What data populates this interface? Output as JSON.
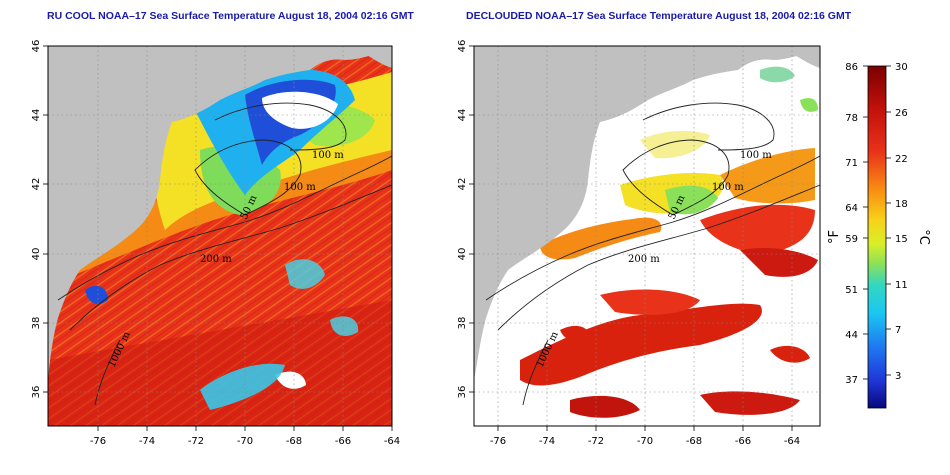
{
  "titles": {
    "left": "RU COOL NOAA–17 Sea Surface Temperature August 18, 2004 02:16 GMT",
    "right": "DECLOUDED NOAA–17 Sea Surface Temperature August 18, 2004 02:16 GMT"
  },
  "map": {
    "lon_ticks": [
      "-76",
      "-74",
      "-72",
      "-70",
      "-68",
      "-66",
      "-64"
    ],
    "lat_ticks": [
      "46",
      "44",
      "42",
      "40",
      "38",
      "36"
    ],
    "lon_range": [
      -77,
      -63
    ],
    "lat_range": [
      35,
      46
    ],
    "contour_labels": [
      "100 m",
      "100 m",
      "50 m",
      "200 m",
      "1000 m"
    ]
  },
  "colorbar": {
    "fahrenheit_ticks": [
      "86",
      "78",
      "71",
      "64",
      "59",
      "51",
      "44",
      "37"
    ],
    "celsius_ticks": [
      "30",
      "26",
      "22",
      "18",
      "15",
      "11",
      "7",
      "3"
    ],
    "fahrenheit_label": "°F",
    "celsius_label": "°C"
  },
  "colors": {
    "land": "#c0c0c0",
    "cloud_mask": "#ffffff",
    "title": "#1a1aa8",
    "warm": "#e8321a",
    "cool": "#1f4fd8"
  }
}
